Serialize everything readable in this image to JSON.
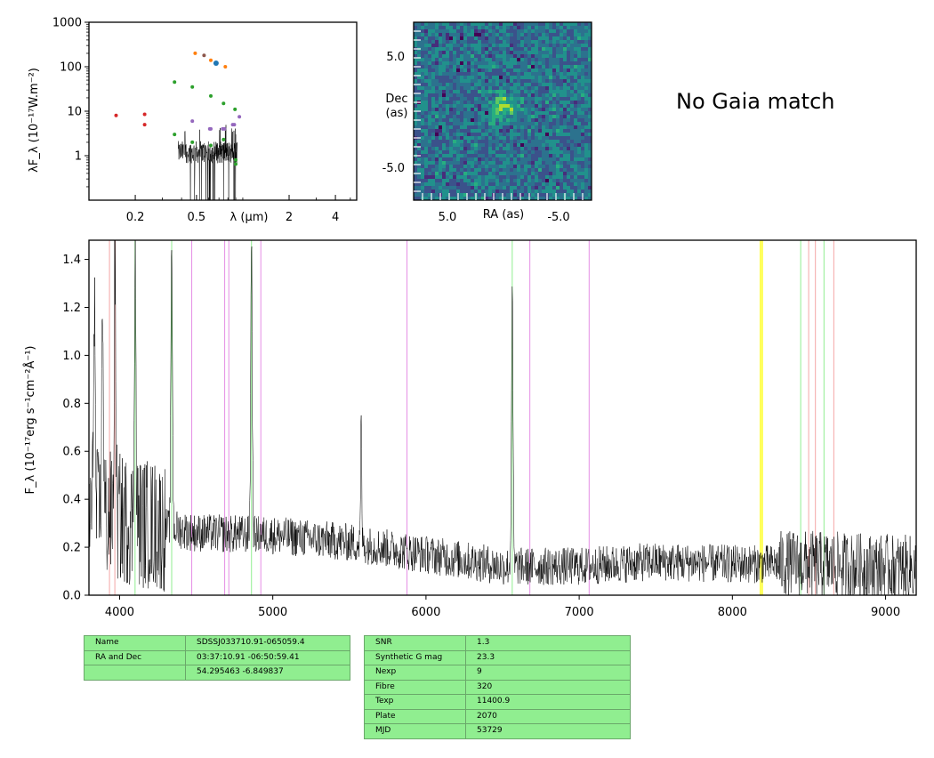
{
  "sed_panel": {
    "ylabel": "λF_λ (10⁻¹⁷W.m⁻²)",
    "xlabel": "λ (μm)",
    "y_ticks": [
      "1000",
      "100",
      "10",
      "1"
    ],
    "x_ticks": [
      "0.2",
      "0.5",
      "2",
      "4"
    ],
    "x_tick_values": [
      0.2,
      0.5,
      2,
      4
    ],
    "xlim": [
      0.1,
      5.5
    ],
    "ylim": [
      0.1,
      1000
    ],
    "photometry": [
      {
        "color": "#d62728",
        "points": [
          [
            0.15,
            8
          ],
          [
            0.23,
            8.5
          ],
          [
            0.23,
            5
          ]
        ]
      },
      {
        "color": "#2ca02c",
        "points": [
          [
            0.36,
            45
          ],
          [
            0.36,
            3
          ],
          [
            0.47,
            35
          ],
          [
            0.47,
            2
          ],
          [
            0.62,
            22
          ],
          [
            0.62,
            1.7
          ],
          [
            0.75,
            15
          ],
          [
            0.75,
            2.3
          ],
          [
            0.89,
            11
          ],
          [
            0.9,
            0.8
          ],
          [
            0.9,
            0.65
          ]
        ]
      },
      {
        "color": "#9467bd",
        "points": [
          [
            0.47,
            6
          ],
          [
            0.61,
            4
          ],
          [
            0.62,
            4
          ],
          [
            0.74,
            4
          ],
          [
            0.76,
            4
          ],
          [
            0.86,
            5
          ],
          [
            0.88,
            5
          ],
          [
            0.95,
            7.5
          ]
        ]
      },
      {
        "color": "#ff7f0e",
        "points": [
          [
            0.49,
            200
          ],
          [
            0.62,
            140
          ],
          [
            0.77,
            100
          ]
        ]
      },
      {
        "color": "#8c564b",
        "points": [
          [
            0.56,
            180
          ]
        ]
      },
      {
        "color": "#1f77b4",
        "points": [
          [
            0.67,
            120
          ]
        ]
      }
    ]
  },
  "image_panel": {
    "ylabel": "Dec\n(as)",
    "xlabel": "RA (as)",
    "y_ticks": [
      "5.0",
      "-5.0"
    ],
    "x_ticks": [
      "5.0",
      "-5.0"
    ]
  },
  "gaia_text": "No Gaia match",
  "chart_data": {
    "type": "line",
    "ylabel": "F_λ (10⁻¹⁷erg s⁻¹cm⁻²Å⁻¹)",
    "xlim": [
      3800,
      9200
    ],
    "ylim": [
      0.0,
      1.48
    ],
    "x_ticks": [
      "4000",
      "5000",
      "6000",
      "7000",
      "8000",
      "9000"
    ],
    "x_tick_values": [
      4000,
      5000,
      6000,
      7000,
      8000,
      9000
    ],
    "y_ticks": [
      "0.0",
      "0.2",
      "0.4",
      "0.6",
      "0.8",
      "1.0",
      "1.2",
      "1.4"
    ],
    "y_tick_values": [
      0.0,
      0.2,
      0.4,
      0.6,
      0.8,
      1.0,
      1.2,
      1.4
    ],
    "continuum": [
      [
        3800,
        0.35
      ],
      [
        4000,
        0.32
      ],
      [
        4500,
        0.26
      ],
      [
        5000,
        0.25
      ],
      [
        5500,
        0.22
      ],
      [
        6000,
        0.17
      ],
      [
        6500,
        0.12
      ],
      [
        7000,
        0.12
      ],
      [
        7500,
        0.14
      ],
      [
        8000,
        0.13
      ],
      [
        8500,
        0.13
      ],
      [
        9200,
        0.11
      ]
    ],
    "emission_peaks": [
      {
        "x": 3835,
        "y": 1.3
      },
      {
        "x": 3889,
        "y": 1.25
      },
      {
        "x": 3970,
        "y": 1.45
      },
      {
        "x": 4101,
        "y": 1.48
      },
      {
        "x": 4340,
        "y": 1.48
      },
      {
        "x": 4861,
        "y": 1.48
      },
      {
        "x": 5577,
        "y": 0.73
      },
      {
        "x": 6563,
        "y": 1.24
      }
    ],
    "line_markers": [
      {
        "x": 3934,
        "color": "#f4a6a6"
      },
      {
        "x": 3969,
        "color": "#f4a6a6"
      },
      {
        "x": 4101,
        "color": "#90ee90"
      },
      {
        "x": 4340,
        "color": "#90ee90"
      },
      {
        "x": 4471,
        "color": "#e58ee5"
      },
      {
        "x": 4686,
        "color": "#e58ee5"
      },
      {
        "x": 4713,
        "color": "#e58ee5"
      },
      {
        "x": 4861,
        "color": "#90ee90"
      },
      {
        "x": 4922,
        "color": "#e58ee5"
      },
      {
        "x": 5876,
        "color": "#e58ee5"
      },
      {
        "x": 6563,
        "color": "#90ee90"
      },
      {
        "x": 6678,
        "color": "#e58ee5"
      },
      {
        "x": 7065,
        "color": "#e58ee5"
      },
      {
        "x": 8183,
        "color": "#ffff33"
      },
      {
        "x": 8195,
        "color": "#ffff33"
      },
      {
        "x": 8446,
        "color": "#90ee90"
      },
      {
        "x": 8498,
        "color": "#f4a6a6"
      },
      {
        "x": 8542,
        "color": "#f4a6a6"
      },
      {
        "x": 8598,
        "color": "#90ee90"
      },
      {
        "x": 8662,
        "color": "#f4a6a6"
      }
    ]
  },
  "table_left": [
    {
      "key": "Name",
      "value": "SDSSJ033710.91-065059.4"
    },
    {
      "key": "RA and Dec",
      "value": "03:37:10.91    -06:50:59.41"
    },
    {
      "key": "",
      "value": "54.295463    -6.849837"
    }
  ],
  "table_right": [
    {
      "key": "SNR",
      "value": "1.3"
    },
    {
      "key": "Synthetic G mag",
      "value": "23.3"
    },
    {
      "key": "Nexp",
      "value": "9"
    },
    {
      "key": "Fibre",
      "value": "320"
    },
    {
      "key": "Texp",
      "value": "11400.9"
    },
    {
      "key": "Plate",
      "value": "2070"
    },
    {
      "key": "MJD",
      "value": "53729"
    }
  ]
}
